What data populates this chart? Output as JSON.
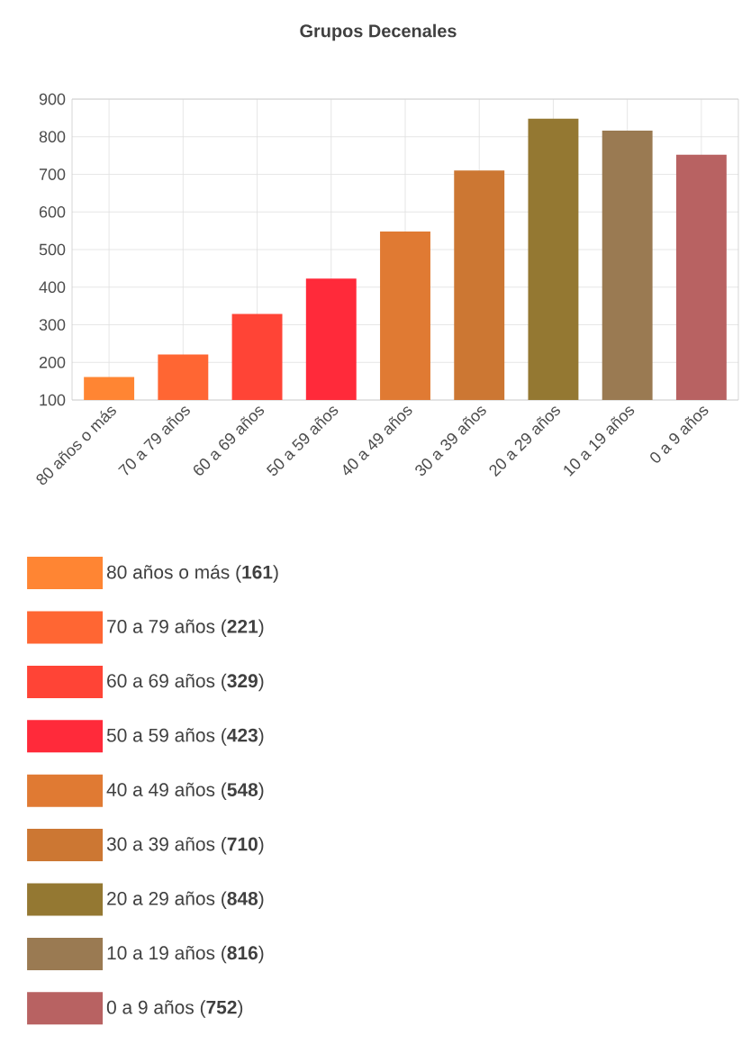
{
  "chart_data": {
    "type": "bar",
    "title": "Grupos Decenales",
    "categories": [
      "80 años o más",
      "70 a 79 años",
      "60 a 69 años",
      "50 a 59 años",
      "40 a 49 años",
      "30 a 39 años",
      "20 a 29 años",
      "10 a 19 años",
      "0 a 9 años"
    ],
    "series": [
      {
        "name": "80 años o más (**161**)",
        "color": "#ff8533",
        "values": [
          161,
          null,
          null,
          null,
          null,
          null,
          null,
          null,
          null
        ]
      },
      {
        "name": "70 a 79 años (**221**)",
        "color": "#ff6633",
        "values": [
          null,
          221,
          null,
          null,
          null,
          null,
          null,
          null,
          null
        ]
      },
      {
        "name": "60 a 69 años (**329**)",
        "color": "#ff4436",
        "values": [
          null,
          null,
          329,
          null,
          null,
          null,
          null,
          null,
          null
        ]
      },
      {
        "name": "50 a 59 años (**423**)",
        "color": "#ff2a3a",
        "values": [
          null,
          null,
          null,
          423,
          null,
          null,
          null,
          null,
          null
        ]
      },
      {
        "name": "40 a 49 años (**548**)",
        "color": "#e07a33",
        "values": [
          null,
          null,
          null,
          null,
          548,
          null,
          null,
          null,
          null
        ]
      },
      {
        "name": "30 a 39 años (**710**)",
        "color": "#cc7733",
        "values": [
          null,
          null,
          null,
          null,
          null,
          710,
          null,
          null,
          null
        ]
      },
      {
        "name": "20 a 29 años (**848**)",
        "color": "#947832",
        "values": [
          null,
          null,
          null,
          null,
          null,
          null,
          848,
          null,
          null
        ]
      },
      {
        "name": "10 a 19 años (**816**)",
        "color": "#9a7a52",
        "values": [
          null,
          null,
          null,
          null,
          null,
          null,
          null,
          816,
          null
        ]
      },
      {
        "name": "0 a 9 años (**752**)",
        "color": "#b86262",
        "values": [
          null,
          null,
          null,
          null,
          null,
          null,
          null,
          null,
          752
        ]
      }
    ],
    "ylim": [
      100,
      900
    ],
    "yticks": [
      100,
      200,
      300,
      400,
      500,
      600,
      700,
      800,
      900
    ],
    "grid": true,
    "legend": "bottom"
  }
}
